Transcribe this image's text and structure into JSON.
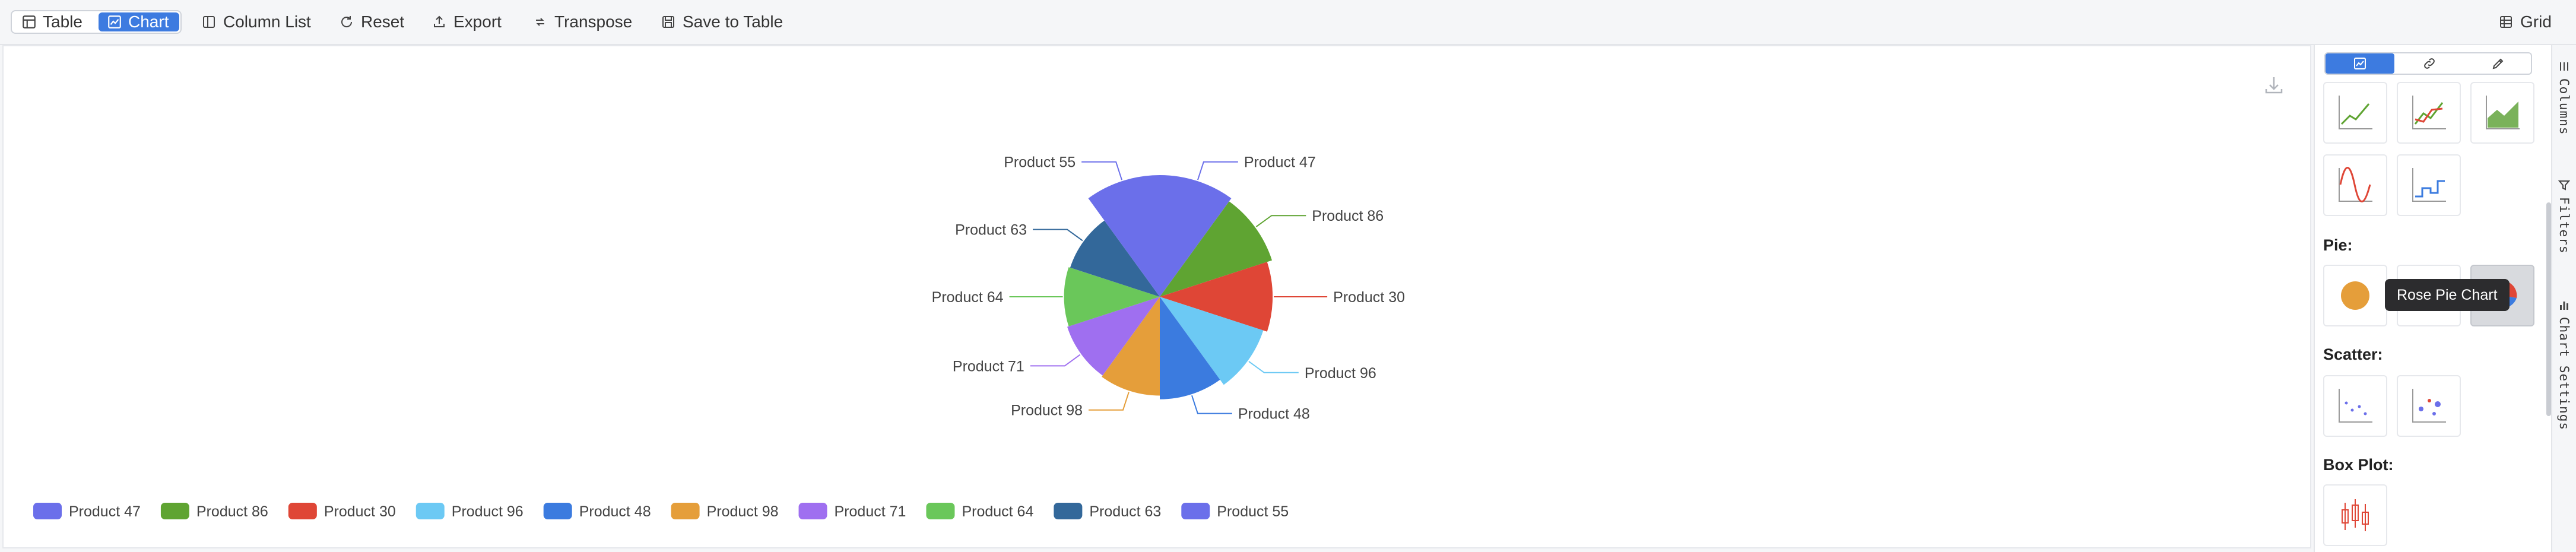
{
  "toolbar": {
    "table_label": "Table",
    "chart_label": "Chart",
    "column_list_label": "Column List",
    "reset_label": "Reset",
    "export_label": "Export",
    "transpose_label": "Transpose",
    "save_to_table_label": "Save to Table",
    "grid_label": "Grid"
  },
  "colors": {
    "accent": "#3d7be0",
    "selected_tile": "#d8dade"
  },
  "sidebar": {
    "modes": [
      "chart-icon",
      "link-icon",
      "pencil-icon"
    ],
    "section_pie": "Pie:",
    "section_scatter": "Scatter:",
    "section_boxplot": "Box Plot:",
    "tooltip": "Rose Pie Chart",
    "selected_chart": "Rose Pie Chart"
  },
  "toolpanel": {
    "columns": "Columns",
    "filters": "Filters",
    "chart_settings": "Chart Settings"
  },
  "chart_data": {
    "type": "pie",
    "subtype": "rose",
    "categories": [
      "Product 47",
      "Product 86",
      "Product 30",
      "Product 96",
      "Product 48",
      "Product 98",
      "Product 71",
      "Product 64",
      "Product 63",
      "Product 55"
    ],
    "values": [
      100,
      94,
      86,
      80,
      71,
      66,
      64,
      62,
      60,
      100
    ],
    "colors": [
      "#6b6fea",
      "#5fa432",
      "#df4636",
      "#6cc9f4",
      "#3b7bdf",
      "#e59e3a",
      "#9f6ff0",
      "#6ac75a",
      "#33689a",
      "#6b6fea"
    ],
    "legend_position": "bottom-left"
  }
}
